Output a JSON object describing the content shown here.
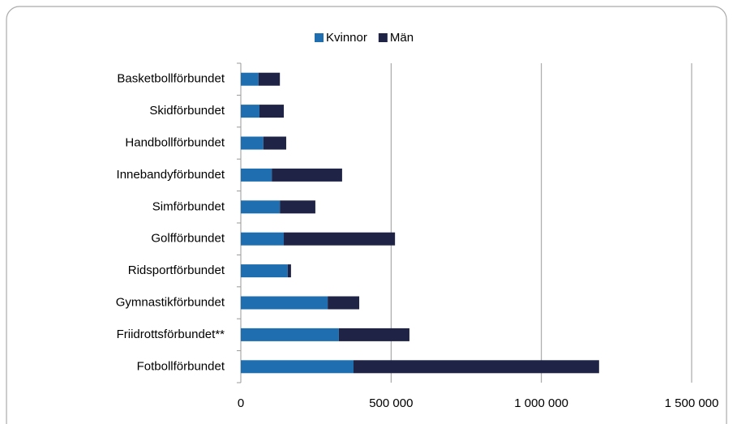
{
  "chart_data": {
    "type": "bar",
    "orientation": "horizontal",
    "stacked": true,
    "categories": [
      "Basketbollförbundet",
      "Skidförbundet",
      "Handbollförbundet",
      "Innebandyförbundet",
      "Simförbundet",
      "Golfförbundet",
      "Ridsportförbundet",
      "Gymnastikförbundet",
      "Friidrottsförbundet**",
      "Fotbollförbundet"
    ],
    "series": [
      {
        "name": "Kvinnor",
        "color": "#1f6fb0",
        "values": [
          59000,
          62000,
          75000,
          103000,
          130000,
          143000,
          156000,
          289000,
          326000,
          375000
        ]
      },
      {
        "name": "Män",
        "color": "#1f2447",
        "values": [
          71000,
          81000,
          76000,
          234000,
          118000,
          370000,
          11000,
          105000,
          235000,
          817000
        ]
      }
    ],
    "xlim": [
      0,
      1500000
    ],
    "xticks": [
      0,
      {
        "value": 500000,
        "label": "500 000"
      },
      {
        "value": 1000000,
        "label": "1 000 000"
      },
      {
        "value": 1500000,
        "label": "1 500 000"
      }
    ],
    "grid": true,
    "legend": "top"
  }
}
